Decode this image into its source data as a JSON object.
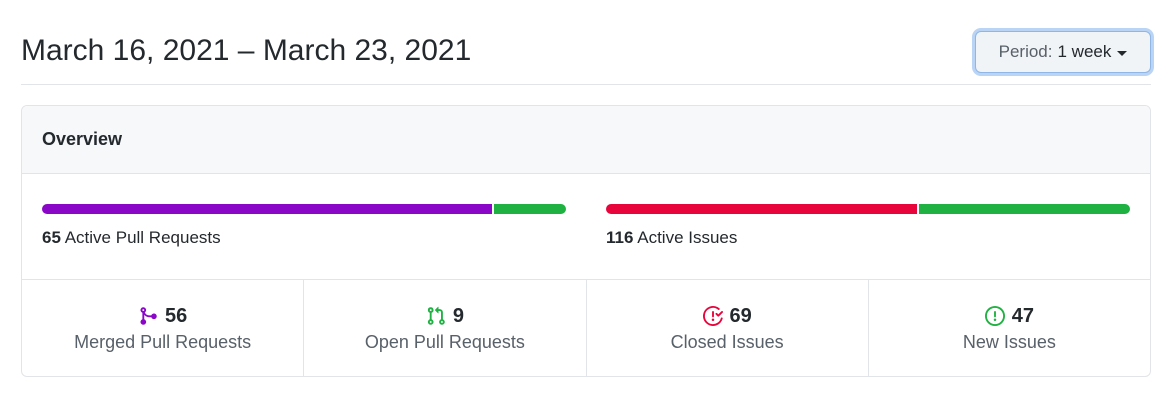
{
  "header": {
    "date_range": "March 16, 2021 – March 23, 2021",
    "period_label": "Period:",
    "period_value": "1 week"
  },
  "overview": {
    "title": "Overview",
    "pull_requests": {
      "count": "65",
      "label": "Active Pull Requests",
      "merged_fraction": 0.862,
      "merged_color": "#8a07c8",
      "open_color": "#1fb141"
    },
    "issues": {
      "count": "116",
      "label": "Active Issues",
      "closed_fraction": 0.595,
      "closed_color": "#e8053b",
      "new_color": "#1fb141"
    },
    "stats": [
      {
        "icon": "merge-icon",
        "count": "56",
        "label": "Merged Pull Requests",
        "color": "#8a07c8"
      },
      {
        "icon": "pull-request-icon",
        "count": "9",
        "label": "Open Pull Requests",
        "color": "#1fb141"
      },
      {
        "icon": "issue-closed-icon",
        "count": "69",
        "label": "Closed Issues",
        "color": "#e8053b"
      },
      {
        "icon": "issue-opened-icon",
        "count": "47",
        "label": "New Issues",
        "color": "#1fb141"
      }
    ]
  }
}
